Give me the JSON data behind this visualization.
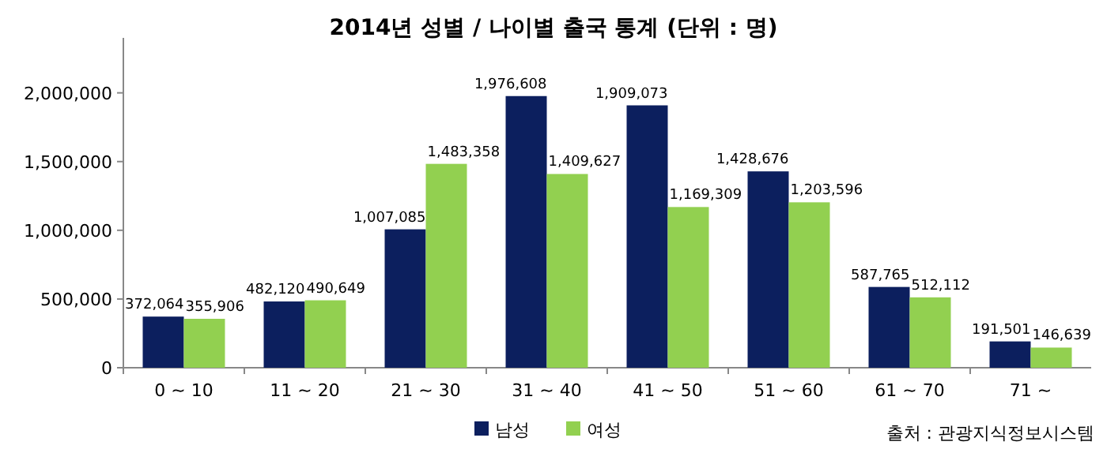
{
  "chart_data": {
    "type": "bar",
    "title": "2014년 성별 / 나이별 출국 통계 (단위 : 명)",
    "categories": [
      "0 ~ 10",
      "11 ~ 20",
      "21 ~ 30",
      "31 ~ 40",
      "41 ~ 50",
      "51 ~ 60",
      "61 ~ 70",
      "71 ~"
    ],
    "series": [
      {
        "name": "남성",
        "color": "#0c1f5e",
        "values": [
          372064,
          482120,
          1007085,
          1976608,
          1909073,
          1428676,
          587765,
          191501
        ],
        "value_labels": [
          "372,064",
          "482,120",
          "1,007,085",
          "1,976,608",
          "1,909,073",
          "1,428,676",
          "587,765",
          "191,501"
        ]
      },
      {
        "name": "여성",
        "color": "#92d050",
        "values": [
          355906,
          490649,
          1483358,
          1409627,
          1169309,
          1203596,
          512112,
          146639
        ],
        "value_labels": [
          "355,906",
          "490,649",
          "1,483,358",
          "1,409,627",
          "1,169,309",
          "1,203,596",
          "512,112",
          "146,639"
        ]
      }
    ],
    "ylim": [
      0,
      2400000
    ],
    "yticks": [
      {
        "value": 0,
        "label": "0"
      },
      {
        "value": 500000,
        "label": "500,000"
      },
      {
        "value": 1000000,
        "label": "1,000,000"
      },
      {
        "value": 1500000,
        "label": "1,500,000"
      },
      {
        "value": 2000000,
        "label": "2,000,000"
      }
    ],
    "legend": "bottom",
    "annotations": [
      "출처 : 관광지식정보시스템"
    ]
  }
}
